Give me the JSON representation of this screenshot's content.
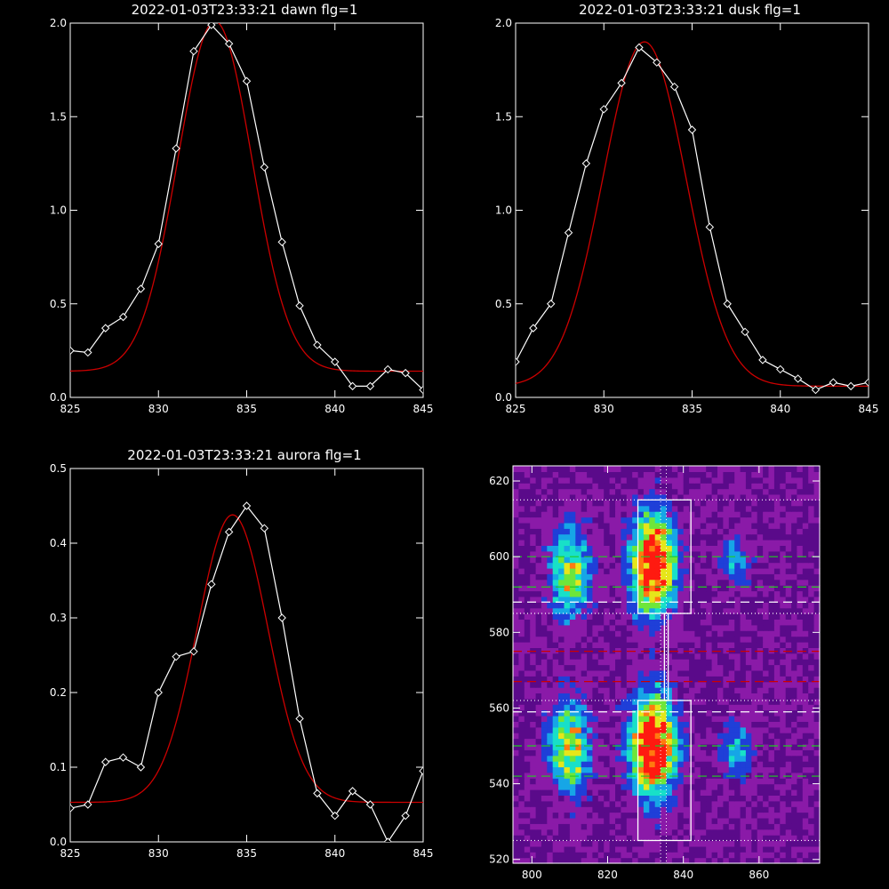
{
  "chart_data": [
    {
      "type": "line",
      "title": "2022-01-03T23:33:21 dawn flg=1",
      "xlim": [
        825,
        845
      ],
      "ylim": [
        0,
        2.0
      ],
      "xticks": [
        825,
        830,
        835,
        840,
        845
      ],
      "xticklabels": [
        "825",
        "830",
        "835",
        "840",
        "845"
      ],
      "yticks": [
        0,
        0.5,
        1.0,
        1.5,
        2.0
      ],
      "yticklabels": [
        "0.0",
        "0.5",
        "1.0",
        "1.5",
        "2.0"
      ],
      "series": [
        {
          "color": "#ffffff",
          "marker": "diamond",
          "x": [
            825,
            826,
            827,
            828,
            829,
            830,
            831,
            832,
            833,
            834,
            835,
            836,
            837,
            838,
            839,
            840,
            841,
            842,
            843,
            844,
            845
          ],
          "y": [
            0.25,
            0.24,
            0.37,
            0.43,
            0.58,
            0.82,
            1.33,
            1.85,
            1.99,
            1.89,
            1.69,
            1.23,
            0.83,
            0.49,
            0.28,
            0.19,
            0.06,
            0.06,
            0.15,
            0.13,
            0.04
          ]
        },
        {
          "color": "#cc0000",
          "fit": "gaussian",
          "amplitude": 1.87,
          "center": 833.2,
          "sigma": 2.1,
          "offset": 0.14
        }
      ]
    },
    {
      "type": "line",
      "title": "2022-01-03T23:33:21 dusk flg=1",
      "xlim": [
        825,
        845
      ],
      "ylim": [
        0,
        2.0
      ],
      "xticks": [
        825,
        830,
        835,
        840,
        845
      ],
      "xticklabels": [
        "825",
        "830",
        "835",
        "840",
        "845"
      ],
      "yticks": [
        0,
        0.5,
        1.0,
        1.5,
        2.0
      ],
      "yticklabels": [
        "0.0",
        "0.5",
        "1.0",
        "1.5",
        "2.0"
      ],
      "series": [
        {
          "color": "#ffffff",
          "marker": "diamond",
          "x": [
            825,
            826,
            827,
            828,
            829,
            830,
            831,
            832,
            833,
            834,
            835,
            836,
            837,
            838,
            839,
            840,
            841,
            842,
            843,
            844,
            845
          ],
          "y": [
            0.19,
            0.37,
            0.5,
            0.88,
            1.25,
            1.54,
            1.68,
            1.87,
            1.79,
            1.66,
            1.43,
            0.91,
            0.5,
            0.35,
            0.2,
            0.15,
            0.1,
            0.04,
            0.08,
            0.06,
            0.08
          ]
        },
        {
          "color": "#cc0000",
          "fit": "gaussian",
          "amplitude": 1.84,
          "center": 832.3,
          "sigma": 2.35,
          "offset": 0.06
        }
      ]
    },
    {
      "type": "line",
      "title": "2022-01-03T23:33:21 aurora flg=1",
      "xlim": [
        825,
        845
      ],
      "ylim": [
        0,
        0.5
      ],
      "xticks": [
        825,
        830,
        835,
        840,
        845
      ],
      "xticklabels": [
        "825",
        "830",
        "835",
        "840",
        "845"
      ],
      "yticks": [
        0,
        0.1,
        0.2,
        0.3,
        0.4,
        0.5
      ],
      "yticklabels": [
        "0.0",
        "0.1",
        "0.2",
        "0.3",
        "0.4",
        "0.5"
      ],
      "series": [
        {
          "color": "#ffffff",
          "marker": "diamond",
          "x": [
            825,
            826,
            827,
            828,
            829,
            830,
            831,
            832,
            833,
            834,
            835,
            836,
            837,
            838,
            839,
            840,
            841,
            842,
            843,
            844,
            845
          ],
          "y": [
            0.045,
            0.05,
            0.107,
            0.113,
            0.1,
            0.2,
            0.248,
            0.255,
            0.345,
            0.415,
            0.45,
            0.42,
            0.3,
            0.165,
            0.065,
            0.035,
            0.068,
            0.05,
            0.0,
            0.035,
            0.095
          ]
        },
        {
          "color": "#cc0000",
          "fit": "gaussian",
          "amplitude": 0.385,
          "center": 834.2,
          "sigma": 2.0,
          "offset": 0.053
        }
      ]
    },
    {
      "type": "heatmap",
      "xlim": [
        795,
        876
      ],
      "ylim": [
        519,
        624
      ],
      "xticks": [
        800,
        820,
        840,
        860
      ],
      "xticklabels": [
        "800",
        "820",
        "840",
        "860"
      ],
      "yticks": [
        520,
        540,
        560,
        580,
        600,
        620
      ],
      "yticklabels": [
        "520",
        "540",
        "560",
        "580",
        "600",
        "620"
      ],
      "colormap": [
        "#1a0526",
        "#5a0a8a",
        "#8a1aa8",
        "#1f3fd8",
        "#16a6e6",
        "#18e0c8",
        "#6ee63a",
        "#e6e61a",
        "#ff7a10",
        "#ff1a10"
      ],
      "blobs": [
        {
          "x": 810,
          "y": 596,
          "sx": 3.5,
          "sy": 8,
          "amp": 0.55
        },
        {
          "x": 832,
          "y": 598,
          "sx": 4,
          "sy": 9,
          "amp": 0.9
        },
        {
          "x": 832,
          "y": 550,
          "sx": 4,
          "sy": 9,
          "amp": 1.0
        },
        {
          "x": 810,
          "y": 550,
          "sx": 3.5,
          "sy": 8,
          "amp": 0.6
        },
        {
          "x": 854,
          "y": 599,
          "sx": 3,
          "sy": 5,
          "amp": 0.25
        },
        {
          "x": 854,
          "y": 549,
          "sx": 3,
          "sy": 5,
          "amp": 0.28
        }
      ],
      "boxes": [
        {
          "x0": 828,
          "x1": 842,
          "y0": 585,
          "y1": 615
        },
        {
          "x0": 828,
          "x1": 842,
          "y0": 525,
          "y1": 562
        },
        {
          "x0": 835,
          "x1": 836,
          "y0": 562,
          "y1": 585
        }
      ],
      "hlines": [
        {
          "y": 615,
          "color": "#ffffff",
          "style": "dotted"
        },
        {
          "y": 600,
          "color": "#22cc22",
          "style": "dashed"
        },
        {
          "y": 592,
          "color": "#22cc22",
          "style": "dashed"
        },
        {
          "y": 588,
          "color": "#ffffff",
          "style": "dashed"
        },
        {
          "y": 585,
          "color": "#ffffff",
          "style": "dotted"
        },
        {
          "y": 575,
          "color": "#cc0000",
          "style": "dashed"
        },
        {
          "y": 567,
          "color": "#cc0000",
          "style": "dashed"
        },
        {
          "y": 562,
          "color": "#ffffff",
          "style": "dotted"
        },
        {
          "y": 559,
          "color": "#ffffff",
          "style": "dashed"
        },
        {
          "y": 550,
          "color": "#22cc22",
          "style": "dashed"
        },
        {
          "y": 542,
          "color": "#22cc22",
          "style": "dashed"
        },
        {
          "y": 525,
          "color": "#ffffff",
          "style": "dotted"
        }
      ],
      "vlines": [
        {
          "x": 834,
          "color": "#ffffff",
          "style": "dotted"
        },
        {
          "x": 835.5,
          "color": "#ffffff",
          "style": "dotted"
        }
      ]
    }
  ]
}
